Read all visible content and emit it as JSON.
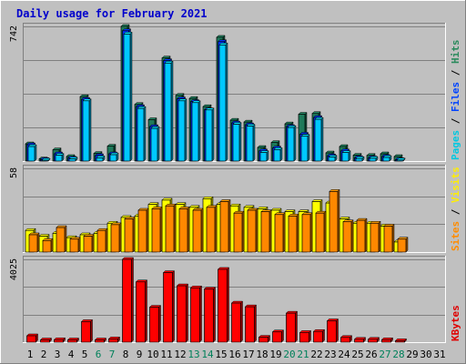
{
  "chart_data": [
    {
      "type": "bar",
      "title": "Daily usage for February 2021",
      "categories": [
        "1",
        "2",
        "3",
        "4",
        "5",
        "6",
        "7",
        "8",
        "9",
        "10",
        "11",
        "12",
        "13",
        "14",
        "15",
        "16",
        "17",
        "18",
        "19",
        "20",
        "21",
        "22",
        "23",
        "24",
        "25",
        "26",
        "27",
        "28",
        "29",
        "30",
        "31"
      ],
      "weekend_days": [
        "6",
        "7",
        "13",
        "14",
        "20",
        "21",
        "27",
        "28"
      ],
      "ylabel_parts": [
        {
          "text": "Pages",
          "color": "#00C8E0"
        },
        {
          "text": " / ",
          "color": "#000000"
        },
        {
          "text": "Files",
          "color": "#0044FF"
        },
        {
          "text": " / ",
          "color": "#000000"
        },
        {
          "text": "Hits",
          "color": "#2A8A5C"
        }
      ],
      "ymax_label": "742",
      "ylim": [
        0,
        742
      ],
      "series": [
        {
          "name": "Hits",
          "color": "#1E7A5A",
          "values": [
            95,
            12,
            62,
            25,
            355,
            42,
            82,
            742,
            312,
            228,
            568,
            362,
            345,
            300,
            682,
            225,
            215,
            75,
            102,
            205,
            258,
            262,
            45,
            80,
            32,
            31,
            40,
            25,
            0,
            0,
            0
          ]
        },
        {
          "name": "Files",
          "color": "#0030FF",
          "values": [
            90,
            9,
            40,
            16,
            340,
            30,
            40,
            718,
            300,
            190,
            553,
            343,
            328,
            283,
            658,
            210,
            200,
            56,
            72,
            190,
            148,
            240,
            29,
            56,
            18,
            18,
            25,
            8,
            0,
            0,
            0
          ]
        },
        {
          "name": "Pages",
          "color": "#00C8FF",
          "values": [
            80,
            5,
            32,
            12,
            332,
            18,
            35,
            700,
            290,
            180,
            540,
            332,
            322,
            282,
            640,
            203,
            193,
            47,
            63,
            185,
            137,
            230,
            22,
            47,
            14,
            15,
            20,
            6,
            0,
            0,
            0
          ]
        }
      ]
    },
    {
      "type": "bar",
      "ylabel_parts": [
        {
          "text": "Sites",
          "color": "#FF8C00"
        },
        {
          "text": " / ",
          "color": "#000000"
        },
        {
          "text": "Visits",
          "color": "#FFEE00"
        }
      ],
      "ymax_label": "58",
      "ylim": [
        0,
        58
      ],
      "series": [
        {
          "name": "Visits",
          "color": "#FFFF00",
          "values": [
            15,
            11,
            13,
            10,
            12,
            13,
            20,
            24,
            25,
            33,
            36,
            33,
            31,
            37,
            33,
            32,
            31,
            30,
            29,
            28,
            28,
            35,
            34,
            23,
            20,
            20,
            18,
            7,
            0,
            0,
            0
          ]
        },
        {
          "name": "Sites",
          "color": "#FF8800",
          "values": [
            12,
            8,
            17,
            9,
            11,
            15,
            19,
            23,
            29,
            30,
            32,
            30,
            29,
            31,
            35,
            27,
            29,
            28,
            26,
            25,
            26,
            27,
            42,
            21,
            22,
            20,
            18,
            9,
            0,
            0,
            0
          ]
        }
      ]
    },
    {
      "type": "bar",
      "ylabel_parts": [
        {
          "text": "KBytes",
          "color": "#E00000"
        }
      ],
      "ymax_label": "4025",
      "ylim": [
        0,
        4025
      ],
      "series": [
        {
          "name": "KBytes",
          "color": "#FF0000",
          "values": [
            310,
            110,
            120,
            110,
            1000,
            110,
            160,
            4025,
            2930,
            1700,
            3380,
            2740,
            2640,
            2580,
            3540,
            1900,
            1720,
            240,
            500,
            1410,
            470,
            520,
            1040,
            230,
            140,
            140,
            120,
            70,
            0,
            0,
            0
          ]
        }
      ]
    }
  ]
}
